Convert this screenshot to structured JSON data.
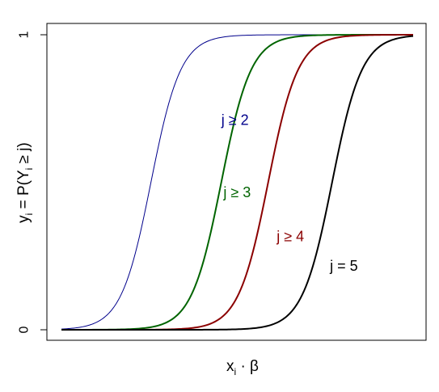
{
  "chart_data": {
    "type": "line",
    "title": "",
    "xlabel": {
      "main": "x",
      "sub": "i",
      "tail": " · β"
    },
    "ylabel": {
      "a": "y",
      "a_sub": "i",
      "b": " = P(Y",
      "b_sub": "i",
      "c": " ≥ j)"
    },
    "ylim": [
      0,
      1
    ],
    "yticks": [
      {
        "value": 0,
        "label": "0"
      },
      {
        "value": 1,
        "label": "1"
      }
    ],
    "xlim": [
      -6.5,
      10
    ],
    "x_tick_labels": "none",
    "grid": false,
    "legend": "none (curves labelled directly)",
    "curve_model": "logistic: y = 1 / (1 + exp(-(x - center) / scale))",
    "series": [
      {
        "name": "j ≥ 2",
        "center": -2.3,
        "scale": 0.7,
        "color": "#00008B",
        "line_width": 1,
        "label_at": {
          "x": 1.0,
          "y": 0.695
        }
      },
      {
        "name": "j ≥ 3",
        "center": 1.0,
        "scale": 0.7,
        "color": "#006400",
        "line_width": 2,
        "label_at": {
          "x": 1.1,
          "y": 0.45
        }
      },
      {
        "name": "j ≥ 4",
        "center": 3.2,
        "scale": 0.7,
        "color": "#8B0000",
        "line_width": 2,
        "label_at": {
          "x": 3.6,
          "y": 0.3
        }
      },
      {
        "name": "j = 5",
        "center": 6.2,
        "scale": 0.7,
        "color": "#000000",
        "line_width": 2,
        "label_at": {
          "x": 6.1,
          "y": 0.2
        }
      }
    ]
  }
}
